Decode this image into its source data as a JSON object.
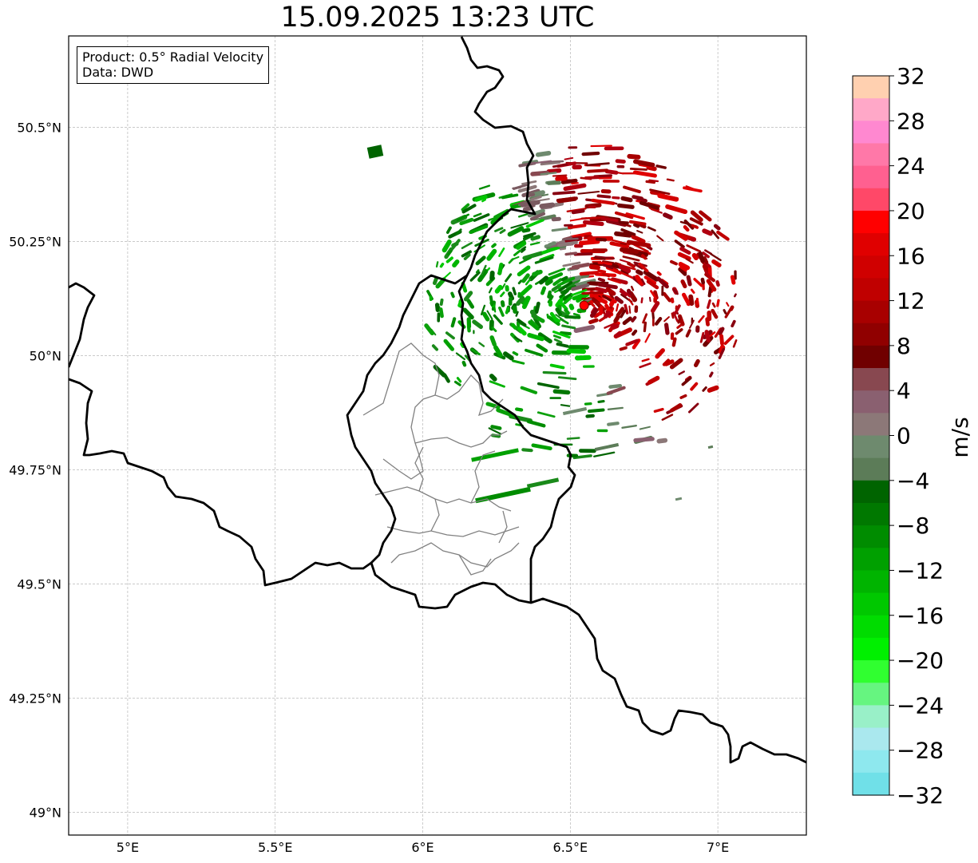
{
  "title": "15.09.2025 13:23 UTC",
  "info": {
    "product": "Product: 0.5° Radial Velocity",
    "data": "Data: DWD"
  },
  "map": {
    "extent": {
      "lon_min": 4.8,
      "lon_max": 7.3,
      "lat_min": 48.95,
      "lat_max": 50.7
    },
    "lon_ticks": [
      5.0,
      5.5,
      6.0,
      6.5,
      7.0
    ],
    "lon_labels": [
      "5°E",
      "5.5°E",
      "6°E",
      "6.5°E",
      "7°E"
    ],
    "lat_ticks": [
      49.0,
      49.25,
      49.5,
      49.75,
      50.0,
      50.25,
      50.5
    ],
    "lat_labels": [
      "49°N",
      "49.25°N",
      "49.5°N",
      "49.75°N",
      "50°N",
      "50.25°N",
      "50.5°N"
    ],
    "radar_site": {
      "lon": 6.547,
      "lat": 50.11,
      "color": "#ff0000"
    },
    "grid": true
  },
  "colorbar": {
    "unit": "m/s",
    "vmin": -32,
    "vmax": 32,
    "tick_values": [
      32,
      28,
      24,
      20,
      16,
      12,
      8,
      4,
      0,
      -4,
      -8,
      -12,
      -16,
      -20,
      -24,
      -28,
      -32
    ],
    "tick_labels": [
      "32",
      "28",
      "24",
      "20",
      "16",
      "12",
      "8",
      "4",
      "0",
      "−4",
      "−8",
      "−12",
      "−16",
      "−20",
      "−24",
      "−28",
      "−32"
    ],
    "colors_top_to_bottom": [
      "#ffd0b0",
      "#ffa8c8",
      "#ff88d0",
      "#ff78a8",
      "#ff6090",
      "#ff4868",
      "#ff0000",
      "#e00000",
      "#d00000",
      "#c00000",
      "#a80000",
      "#900000",
      "#700000",
      "#884850",
      "#8a6070",
      "#8c7878",
      "#6e8a6e",
      "#5c7c58",
      "#006400",
      "#007800",
      "#008c00",
      "#00a000",
      "#00b400",
      "#00c800",
      "#00dc00",
      "#00f000",
      "#30ff30",
      "#66f580",
      "#99f0c8",
      "#aae8ee",
      "#8ee8ee",
      "#70e0e8"
    ]
  }
}
